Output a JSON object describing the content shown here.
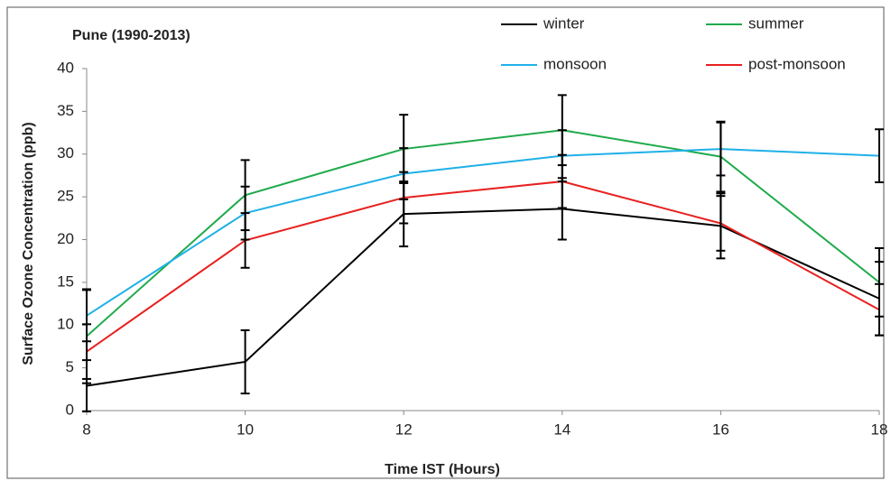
{
  "chart_data": {
    "type": "line",
    "title": "Pune (1990-2013)",
    "x_label": "Time IST (Hours)",
    "y_label": "Surface Ozone Concentration (ppb)",
    "x": [
      8,
      10,
      12,
      14,
      16,
      18
    ],
    "xlim": [
      8,
      18
    ],
    "xticks": [
      8,
      10,
      12,
      14,
      16,
      18
    ],
    "ylim": [
      0,
      40
    ],
    "yticks": [
      0,
      5,
      10,
      15,
      20,
      25,
      30,
      35,
      40
    ],
    "error_bar_color": "#000000",
    "series": [
      {
        "name": "winter",
        "color": "#000000",
        "values": [
          2.9,
          5.7,
          23.0,
          23.6,
          21.6,
          13.1
        ],
        "errors": [
          3.0,
          3.7,
          3.8,
          3.6,
          3.8,
          4.3
        ]
      },
      {
        "name": "summer",
        "color": "#1faa4c",
        "values": [
          8.7,
          25.2,
          30.6,
          32.8,
          29.7,
          15.0
        ],
        "errors": [
          5.5,
          4.1,
          4.0,
          4.1,
          4.1,
          4.0
        ]
      },
      {
        "name": "monsoon",
        "color": "#1fb0e8",
        "values": [
          11.1,
          23.1,
          27.7,
          29.8,
          30.6,
          29.8
        ],
        "errors": [
          3.0,
          3.1,
          3.0,
          3.0,
          3.1,
          3.1
        ]
      },
      {
        "name": "post-monsoon",
        "color": "#e8211f",
        "values": [
          6.9,
          19.9,
          24.9,
          26.8,
          21.9,
          11.8
        ],
        "errors": [
          3.2,
          3.2,
          3.0,
          3.1,
          3.2,
          3.0
        ]
      }
    ]
  }
}
